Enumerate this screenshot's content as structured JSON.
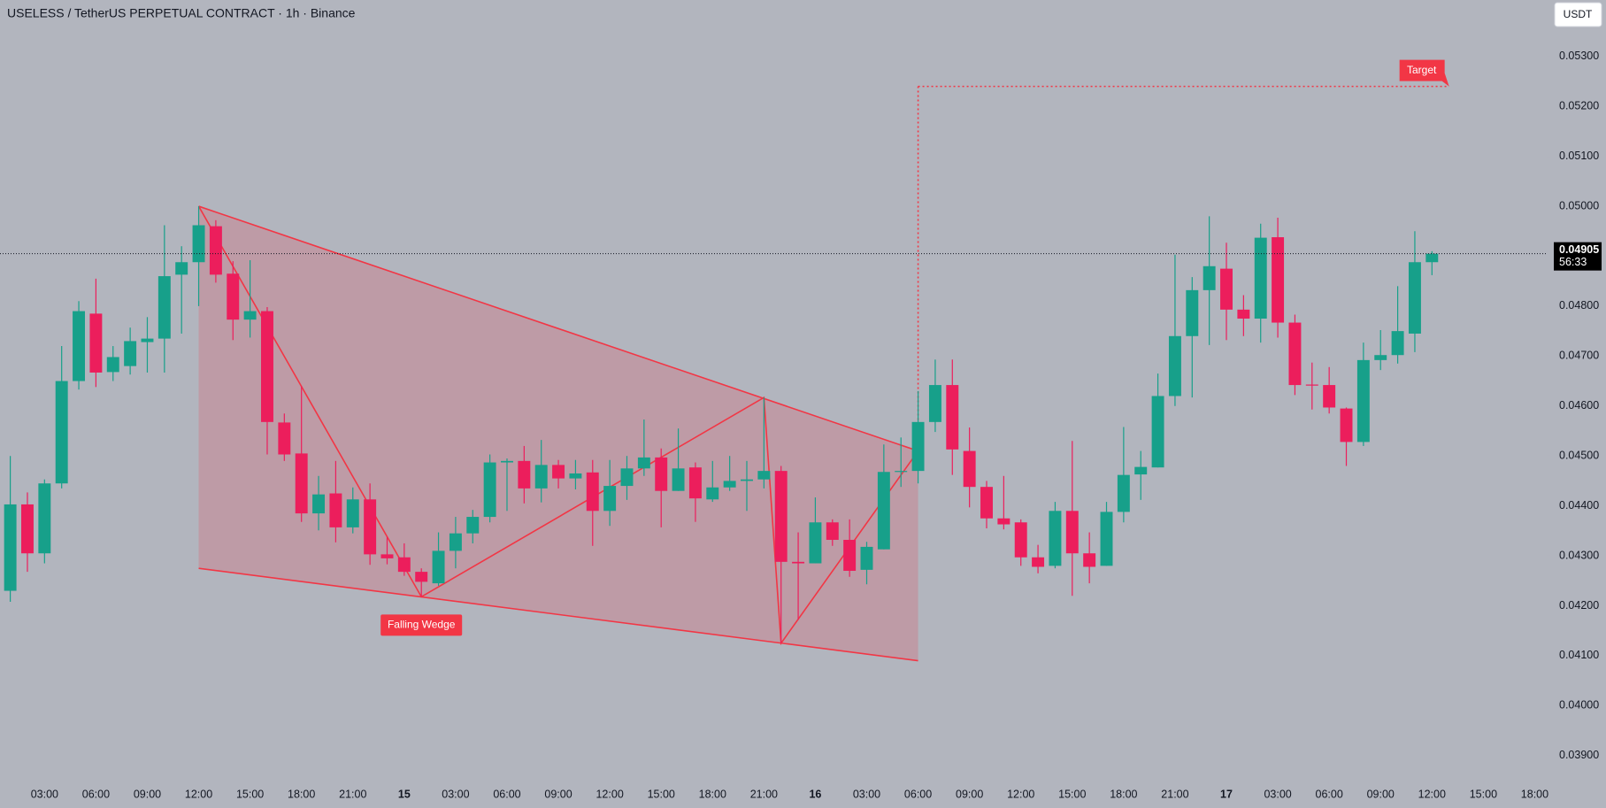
{
  "chart_data": {
    "type": "candlestick",
    "title": "USELESS / TetherUS PERPETUAL CONTRACT · 1h · Binance",
    "currency": "USDT",
    "up_color": "#17a08a",
    "down_color": "#ec1e5c",
    "x": [
      1,
      2,
      3,
      4,
      5,
      6,
      7,
      8,
      9,
      10,
      11,
      12,
      13,
      14,
      15,
      16,
      17,
      18,
      19,
      20,
      21,
      22,
      23,
      24,
      25,
      26,
      27,
      28,
      29,
      30,
      31,
      32,
      33,
      34,
      35,
      36,
      37,
      38,
      39,
      40,
      41,
      42,
      43,
      44,
      45,
      46,
      47,
      48,
      49,
      50,
      51,
      52,
      53,
      54,
      55,
      56,
      57,
      58,
      59,
      60,
      61,
      62,
      63,
      64,
      65,
      66,
      67,
      68,
      69,
      70,
      71,
      72,
      73,
      74,
      75,
      76,
      77,
      78,
      79,
      80,
      81,
      82,
      83,
      84
    ],
    "open": [
      0.0423,
      0.04403,
      0.04305,
      0.04445,
      0.0465,
      0.04785,
      0.04668,
      0.0468,
      0.04728,
      0.04735,
      0.04863,
      0.04888,
      0.0496,
      0.04865,
      0.04773,
      0.0479,
      0.04567,
      0.04505,
      0.04385,
      0.04425,
      0.04357,
      0.04413,
      0.04303,
      0.04297,
      0.04268,
      0.04245,
      0.0431,
      0.04345,
      0.04378,
      0.04487,
      0.0449,
      0.04435,
      0.04482,
      0.04455,
      0.04467,
      0.0439,
      0.0444,
      0.04475,
      0.04497,
      0.0443,
      0.04477,
      0.04413,
      0.04437,
      0.0445,
      0.04453,
      0.0447,
      0.04288,
      0.04285,
      0.04367,
      0.04332,
      0.04272,
      0.04313,
      0.04468,
      0.0447,
      0.04568,
      0.04642,
      0.0451,
      0.04438,
      0.04375,
      0.04367,
      0.04297,
      0.0428,
      0.0439,
      0.04305,
      0.0428,
      0.04388,
      0.04463,
      0.04477,
      0.0462,
      0.0474,
      0.04832,
      0.04875,
      0.04793,
      0.04775,
      0.04938,
      0.04767,
      0.04643,
      0.04642,
      0.04595,
      0.04528,
      0.04692,
      0.04702,
      0.04745,
      0.04888
    ],
    "high": [
      0.045,
      0.04427,
      0.04453,
      0.0472,
      0.0481,
      0.04855,
      0.0472,
      0.04757,
      0.04778,
      0.04962,
      0.0492,
      0.05,
      0.04972,
      0.0489,
      0.04892,
      0.04798,
      0.04585,
      0.0464,
      0.0446,
      0.0449,
      0.04437,
      0.04445,
      0.04338,
      0.04325,
      0.04275,
      0.04347,
      0.04378,
      0.04392,
      0.04503,
      0.04495,
      0.0452,
      0.04532,
      0.04492,
      0.04492,
      0.04492,
      0.04492,
      0.045,
      0.04573,
      0.04515,
      0.04555,
      0.04487,
      0.0449,
      0.045,
      0.0449,
      0.04617,
      0.0448,
      0.04347,
      0.04417,
      0.04373,
      0.04373,
      0.04328,
      0.04523,
      0.04537,
      0.0463,
      0.04693,
      0.04693,
      0.04557,
      0.0445,
      0.0446,
      0.04373,
      0.04322,
      0.04408,
      0.0453,
      0.04347,
      0.04408,
      0.04558,
      0.0451,
      0.04665,
      0.04903,
      0.04858,
      0.0498,
      0.04927,
      0.04822,
      0.04965,
      0.04977,
      0.04783,
      0.04687,
      0.04678,
      0.04597,
      0.04727,
      0.04752,
      0.0484,
      0.0495,
      0.0491
    ],
    "low": [
      0.04208,
      0.04268,
      0.04285,
      0.04435,
      0.04633,
      0.04638,
      0.0465,
      0.04663,
      0.04667,
      0.04667,
      0.04745,
      0.048,
      0.04847,
      0.04732,
      0.04737,
      0.04503,
      0.0449,
      0.04368,
      0.04351,
      0.04327,
      0.04345,
      0.04282,
      0.04283,
      0.0426,
      0.04218,
      0.0424,
      0.04275,
      0.04325,
      0.04367,
      0.0439,
      0.04405,
      0.04407,
      0.04435,
      0.04433,
      0.0432,
      0.0436,
      0.04412,
      0.0446,
      0.04357,
      0.0443,
      0.04368,
      0.04408,
      0.0443,
      0.0439,
      0.04435,
      0.04125,
      0.04172,
      0.04285,
      0.0432,
      0.04258,
      0.04243,
      0.04313,
      0.04438,
      0.04445,
      0.04548,
      0.04462,
      0.04397,
      0.04355,
      0.04353,
      0.0428,
      0.04265,
      0.04275,
      0.0422,
      0.04245,
      0.0428,
      0.04367,
      0.04412,
      0.04477,
      0.046,
      0.04617,
      0.04722,
      0.04732,
      0.0474,
      0.04727,
      0.04737,
      0.04622,
      0.04593,
      0.04585,
      0.0448,
      0.0452,
      0.04672,
      0.04685,
      0.04708,
      0.04862
    ],
    "close": [
      0.04403,
      0.04305,
      0.04445,
      0.0465,
      0.0479,
      0.04667,
      0.04698,
      0.0473,
      0.04735,
      0.0486,
      0.04888,
      0.04962,
      0.04863,
      0.04773,
      0.0479,
      0.04568,
      0.04503,
      0.04385,
      0.04423,
      0.04357,
      0.04413,
      0.04303,
      0.04295,
      0.04268,
      0.04248,
      0.0431,
      0.04345,
      0.04378,
      0.04487,
      0.0449,
      0.04435,
      0.04482,
      0.04455,
      0.04465,
      0.0439,
      0.0444,
      0.04475,
      0.04497,
      0.0443,
      0.04475,
      0.04415,
      0.04437,
      0.0445,
      0.04453,
      0.0447,
      0.04288,
      0.04285,
      0.04367,
      0.04332,
      0.0427,
      0.04318,
      0.04468,
      0.0447,
      0.04568,
      0.04642,
      0.04513,
      0.04438,
      0.04375,
      0.04363,
      0.04297,
      0.04278,
      0.0439,
      0.04305,
      0.04278,
      0.04388,
      0.04462,
      0.04478,
      0.0462,
      0.0474,
      0.04832,
      0.0488,
      0.04793,
      0.04775,
      0.04937,
      0.04767,
      0.04642,
      0.04642,
      0.04597,
      0.04528,
      0.04692,
      0.04702,
      0.0475,
      0.04888,
      0.04905
    ],
    "xlim": [
      0.4,
      90.7
    ],
    "xticks": [
      {
        "value": 3,
        "label": "03:00"
      },
      {
        "value": 6,
        "label": "06:00"
      },
      {
        "value": 9,
        "label": "09:00"
      },
      {
        "value": 12,
        "label": "12:00"
      },
      {
        "value": 15,
        "label": "15:00"
      },
      {
        "value": 18,
        "label": "18:00"
      },
      {
        "value": 21,
        "label": "21:00"
      },
      {
        "value": 24,
        "label": "15"
      },
      {
        "value": 27,
        "label": "03:00"
      },
      {
        "value": 30,
        "label": "06:00"
      },
      {
        "value": 33,
        "label": "09:00"
      },
      {
        "value": 36,
        "label": "12:00"
      },
      {
        "value": 39,
        "label": "15:00"
      },
      {
        "value": 42,
        "label": "18:00"
      },
      {
        "value": 45,
        "label": "21:00"
      },
      {
        "value": 48,
        "label": "16"
      },
      {
        "value": 51,
        "label": "03:00"
      },
      {
        "value": 54,
        "label": "06:00"
      },
      {
        "value": 57,
        "label": "09:00"
      },
      {
        "value": 60,
        "label": "12:00"
      },
      {
        "value": 63,
        "label": "15:00"
      },
      {
        "value": 66,
        "label": "18:00"
      },
      {
        "value": 69,
        "label": "21:00"
      },
      {
        "value": 72,
        "label": "17"
      },
      {
        "value": 75,
        "label": "03:00"
      },
      {
        "value": 78,
        "label": "06:00"
      },
      {
        "value": 81,
        "label": "09:00"
      },
      {
        "value": 84,
        "label": "12:00"
      },
      {
        "value": 87,
        "label": "15:00"
      },
      {
        "value": 90,
        "label": "18:00"
      }
    ],
    "ylim": [
      0.0385,
      0.05413
    ],
    "yticks": [
      {
        "value": 0.053,
        "label": "0.05300"
      },
      {
        "value": 0.052,
        "label": "0.05200"
      },
      {
        "value": 0.051,
        "label": "0.05100"
      },
      {
        "value": 0.05,
        "label": "0.05000"
      },
      {
        "value": 0.049,
        "label": "0.04900"
      },
      {
        "value": 0.048,
        "label": "0.04800"
      },
      {
        "value": 0.047,
        "label": "0.04700"
      },
      {
        "value": 0.046,
        "label": "0.04600"
      },
      {
        "value": 0.045,
        "label": "0.04500"
      },
      {
        "value": 0.044,
        "label": "0.04400"
      },
      {
        "value": 0.043,
        "label": "0.04300"
      },
      {
        "value": 0.042,
        "label": "0.04200"
      },
      {
        "value": 0.041,
        "label": "0.04100"
      },
      {
        "value": 0.04,
        "label": "0.04000"
      },
      {
        "value": 0.039,
        "label": "0.03900"
      }
    ],
    "last_price": 0.04905,
    "countdown": "56:33",
    "pattern": {
      "label": "Falling Wedge",
      "upper": {
        "x": [
          12,
          54
        ],
        "y": [
          0.05,
          0.0451
        ]
      },
      "lower": {
        "x": [
          12,
          54
        ],
        "y": [
          0.04275,
          0.0409
        ]
      },
      "zigzag": {
        "x": [
          12,
          25,
          45,
          46,
          54
        ],
        "y": [
          0.05,
          0.04218,
          0.04617,
          0.04125,
          0.0451
        ]
      }
    },
    "target": {
      "label": "Target",
      "value": 0.0524,
      "x": [
        54,
        85
      ]
    }
  }
}
